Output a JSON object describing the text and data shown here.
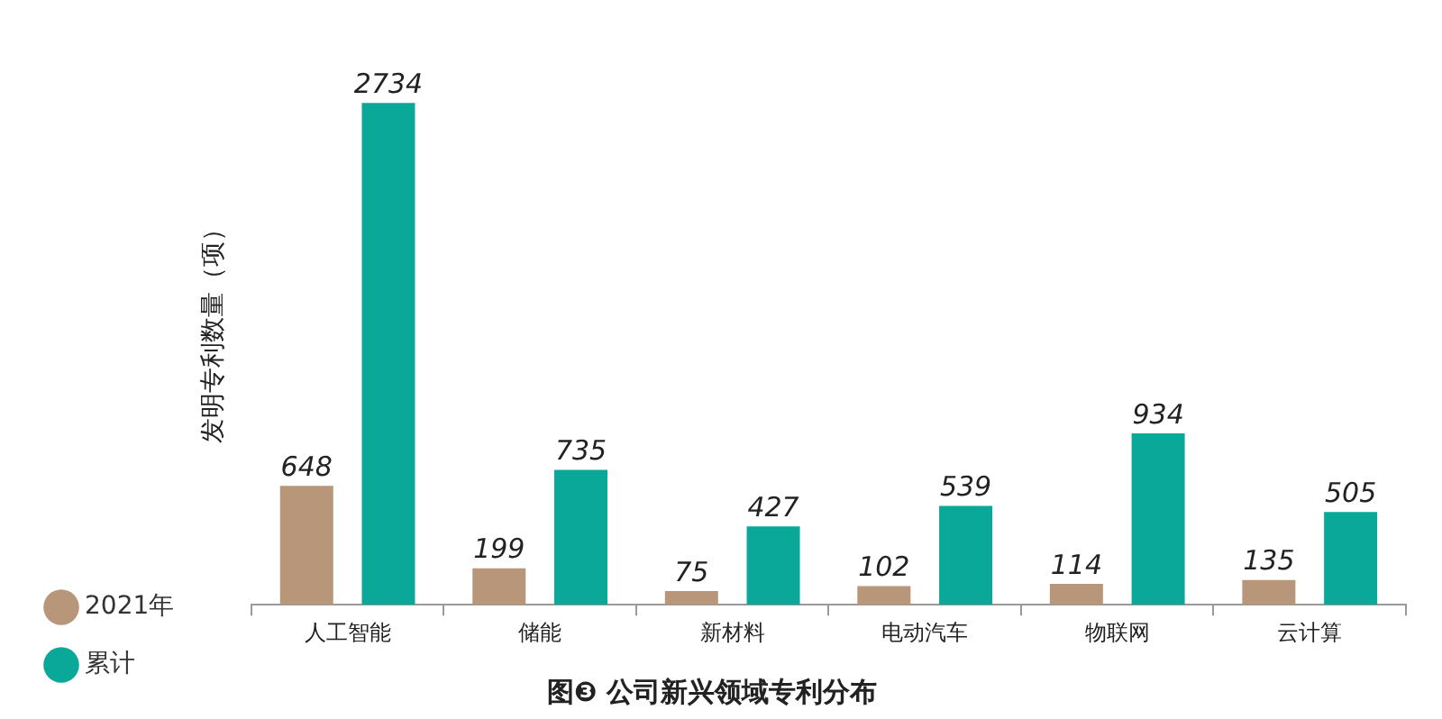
{
  "chart_data": {
    "type": "bar",
    "title": "图❸ 公司新兴领域专利分布",
    "ylabel": "发明专利数量（项）",
    "categories": [
      "人工智能",
      "储能",
      "新材料",
      "电动汽车",
      "物联网",
      "云计算"
    ],
    "series": [
      {
        "name": "2021年",
        "color": "#b8967a",
        "values": [
          648,
          199,
          75,
          102,
          114,
          135
        ]
      },
      {
        "name": "累计",
        "color": "#0aa898",
        "values": [
          2734,
          735,
          427,
          539,
          934,
          505
        ]
      }
    ],
    "data_labels": true,
    "grid": false,
    "legend": "left"
  }
}
